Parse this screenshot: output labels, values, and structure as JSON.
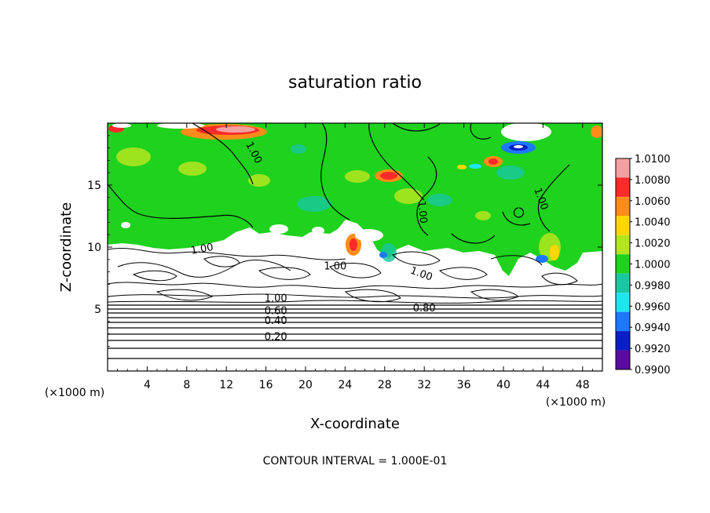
{
  "chart_data": {
    "type": "heatmap",
    "title": "saturation ratio",
    "xlabel": "X-coordinate",
    "ylabel": "Z-coordinate",
    "x_unit": "(×1000 m)",
    "y_unit": "(×1000 m)",
    "xlim": [
      0,
      50
    ],
    "ylim": [
      0,
      20
    ],
    "x_ticks": [
      4,
      8,
      12,
      16,
      20,
      24,
      28,
      32,
      36,
      40,
      44,
      48
    ],
    "y_ticks": [
      5,
      10,
      15
    ],
    "colorbar": {
      "levels": [
        "1.0100",
        "1.0080",
        "1.0060",
        "1.0040",
        "1.0020",
        "1.0000",
        "0.9980",
        "0.9960",
        "0.9940",
        "0.9920",
        "0.9900"
      ],
      "colors": [
        "#f4a0a0",
        "#ff2a2a",
        "#ff8c1a",
        "#ffd700",
        "#b4e61e",
        "#1ed21e",
        "#19c8a0",
        "#1ee6f0",
        "#1e78ff",
        "#0a1ec8",
        "#5a0aa0"
      ]
    },
    "contour_labels": [
      {
        "text": "1.00",
        "x": 14.5,
        "z": 17.5,
        "rot": 62
      },
      {
        "text": "1.00",
        "x": 31.5,
        "z": 12.8,
        "rot": 85
      },
      {
        "text": "1.00",
        "x": 43.5,
        "z": 13.8,
        "rot": 70
      },
      {
        "text": "1.00",
        "x": 9.6,
        "z": 9.6,
        "rot": -10
      },
      {
        "text": "1.00",
        "x": 23.0,
        "z": 8.2,
        "rot": 0
      },
      {
        "text": "1.00",
        "x": 31.6,
        "z": 7.6,
        "rot": 20
      },
      {
        "text": "1.00",
        "x": 17.0,
        "z": 5.6,
        "rot": 0
      },
      {
        "text": "0.80",
        "x": 32.0,
        "z": 4.8,
        "rot": 0
      },
      {
        "text": "0.60",
        "x": 17.0,
        "z": 4.6,
        "rot": 0
      },
      {
        "text": "0.40",
        "x": 17.0,
        "z": 3.8,
        "rot": 0
      },
      {
        "text": "0.20",
        "x": 17.0,
        "z": 2.5,
        "rot": 0
      }
    ],
    "footer": "CONTOUR INTERVAL = 1.000E-01"
  }
}
